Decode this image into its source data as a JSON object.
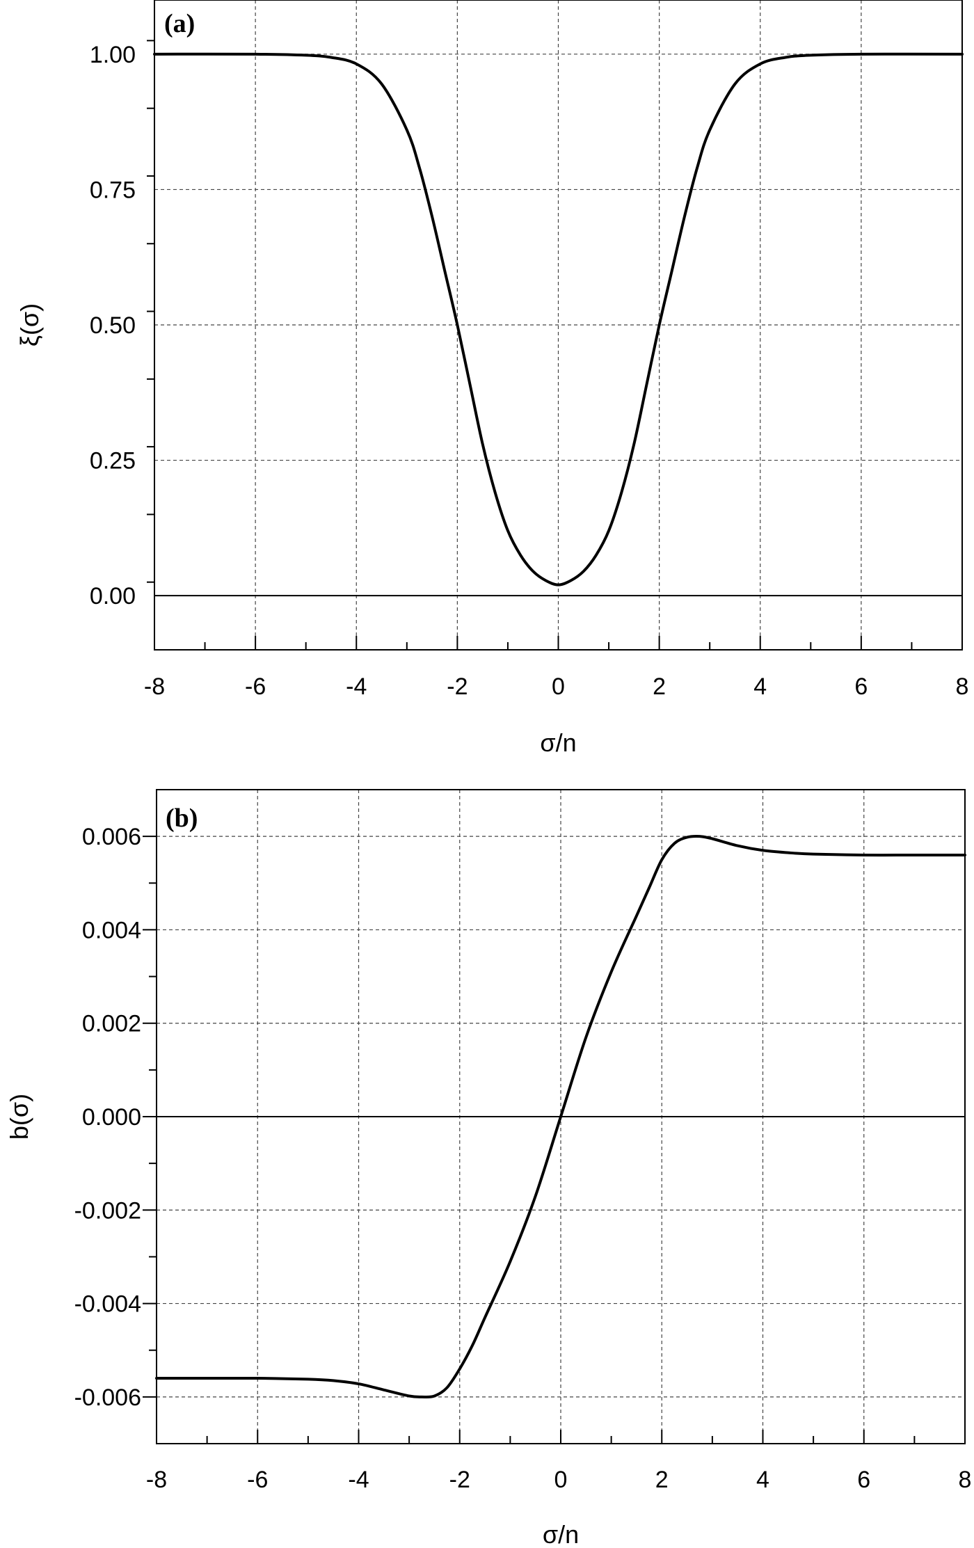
{
  "chart_data": [
    {
      "type": "line",
      "panel_label": "(a)",
      "xlabel": "σ/n",
      "ylabel": "ξ(σ)",
      "xlim": [
        -8,
        8
      ],
      "ylim": [
        -0.1,
        1.1
      ],
      "xticks": [
        -8,
        -6,
        -4,
        -2,
        0,
        2,
        4,
        6,
        8
      ],
      "xtick_labels": [
        "-8",
        "-6",
        "-4",
        "-2",
        "0",
        "2",
        "4",
        "6",
        "8"
      ],
      "yticks": [
        0,
        0.25,
        0.5,
        0.75,
        1.0
      ],
      "ytick_labels": [
        "0.00",
        "0.25",
        "0.50",
        "0.75",
        "1.00"
      ],
      "grid": true,
      "reference_line_y": 0,
      "series": [
        {
          "x": [
            -8,
            -6,
            -5,
            -4.5,
            -4,
            -3.5,
            -3,
            -2.75,
            -2.5,
            -2.25,
            -2,
            -1.75,
            -1.5,
            -1.25,
            -1,
            -0.75,
            -0.5,
            -0.25,
            0,
            0.25,
            0.5,
            0.75,
            1,
            1.25,
            1.5,
            1.75,
            2,
            2.25,
            2.5,
            2.75,
            3,
            3.5,
            4,
            4.5,
            5,
            6,
            8
          ],
          "y": [
            1.0,
            1.0,
            0.998,
            0.994,
            0.982,
            0.945,
            0.86,
            0.79,
            0.7,
            0.6,
            0.5,
            0.39,
            0.28,
            0.19,
            0.12,
            0.075,
            0.045,
            0.028,
            0.02,
            0.028,
            0.045,
            0.075,
            0.12,
            0.19,
            0.28,
            0.39,
            0.5,
            0.6,
            0.7,
            0.79,
            0.86,
            0.945,
            0.982,
            0.994,
            0.998,
            1.0,
            1.0
          ]
        }
      ]
    },
    {
      "type": "line",
      "panel_label": "(b)",
      "xlabel": "σ/n",
      "ylabel": "b(σ)",
      "xlim": [
        -8,
        8
      ],
      "ylim": [
        -0.007,
        0.007
      ],
      "xticks": [
        -8,
        -6,
        -4,
        -2,
        0,
        2,
        4,
        6,
        8
      ],
      "xtick_labels": [
        "-8",
        "-6",
        "-4",
        "-2",
        "0",
        "2",
        "4",
        "6",
        "8"
      ],
      "yticks": [
        -0.006,
        -0.004,
        -0.002,
        0,
        0.002,
        0.004,
        0.006
      ],
      "ytick_labels": [
        "-0.006",
        "-0.004",
        "-0.002",
        "0.000",
        "0.002",
        "0.004",
        "0.006"
      ],
      "grid": true,
      "reference_line_y": 0,
      "series": [
        {
          "x": [
            -8,
            -7,
            -6,
            -5,
            -4.5,
            -4,
            -3.5,
            -3,
            -2.75,
            -2.5,
            -2.25,
            -2,
            -1.75,
            -1.5,
            -1,
            -0.5,
            0,
            0.5,
            1,
            1.5,
            1.75,
            2,
            2.25,
            2.5,
            2.75,
            3,
            3.5,
            4,
            4.5,
            5,
            6,
            7,
            8
          ],
          "y": [
            -0.0056,
            -0.0056,
            -0.0056,
            -0.00562,
            -0.00565,
            -0.00572,
            -0.00585,
            -0.00598,
            -0.006,
            -0.00598,
            -0.0058,
            -0.0054,
            -0.0049,
            -0.0043,
            -0.0031,
            -0.0017,
            0.0,
            0.0017,
            0.0031,
            0.0043,
            0.0049,
            0.0055,
            0.00585,
            0.00598,
            0.006,
            0.00595,
            0.0058,
            0.0057,
            0.00565,
            0.00562,
            0.0056,
            0.0056,
            0.0056
          ]
        }
      ]
    }
  ]
}
